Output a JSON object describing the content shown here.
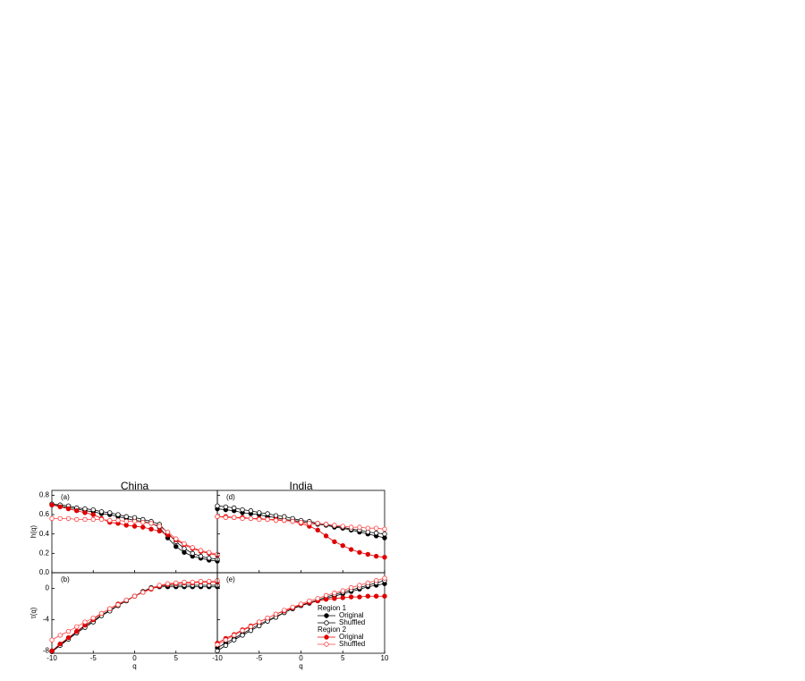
{
  "chart_data": [
    {
      "type": "line",
      "title": "China",
      "annotation": "(a)",
      "y_label": "h(q)",
      "x": [
        -10,
        -9,
        -8,
        -7,
        -6,
        -5,
        -4,
        -3,
        -2,
        -1,
        0,
        1,
        2,
        3,
        4,
        5,
        6,
        7,
        8,
        9,
        10
      ],
      "xlim": [
        -10,
        10
      ],
      "xticks": [
        -10,
        -5,
        0,
        5
      ],
      "xticklabels": false,
      "ylim": [
        0,
        0.85
      ],
      "yticks": [
        {
          "value": 0,
          "label": "0.0"
        },
        0.2,
        0.4,
        0.6,
        0.8
      ],
      "yticklabels": true,
      "series": [
        {
          "name": "Original",
          "region": "Region 1",
          "color": "#000000",
          "marker": "filled",
          "values": [
            0.7,
            0.69,
            0.67,
            0.66,
            0.64,
            0.63,
            0.61,
            0.6,
            0.58,
            0.56,
            0.54,
            0.53,
            0.51,
            0.47,
            0.36,
            0.27,
            0.21,
            0.17,
            0.15,
            0.13,
            0.12
          ]
        },
        {
          "name": "Shuffled",
          "region": "Region 1",
          "color": "#000000",
          "marker": "open",
          "values": [
            0.71,
            0.7,
            0.69,
            0.67,
            0.66,
            0.65,
            0.63,
            0.62,
            0.6,
            0.58,
            0.57,
            0.55,
            0.53,
            0.5,
            0.41,
            0.32,
            0.25,
            0.2,
            0.17,
            0.15,
            0.14
          ]
        },
        {
          "name": "Original",
          "region": "Region 2",
          "color": "#e00000",
          "marker": "filled",
          "values": [
            0.7,
            0.68,
            0.66,
            0.64,
            0.62,
            0.6,
            0.56,
            0.52,
            0.51,
            0.49,
            0.48,
            0.47,
            0.45,
            0.43,
            0.39,
            0.34,
            0.29,
            0.25,
            0.22,
            0.2,
            0.18
          ]
        },
        {
          "name": "Shuffled",
          "region": "Region 2",
          "color": "#ff4040",
          "marker": "open",
          "values": [
            0.56,
            0.56,
            0.56,
            0.55,
            0.55,
            0.55,
            0.55,
            0.54,
            0.54,
            0.53,
            0.53,
            0.52,
            0.51,
            0.48,
            0.42,
            0.35,
            0.3,
            0.26,
            0.23,
            0.21,
            0.19
          ]
        }
      ]
    },
    {
      "type": "line",
      "annotation": "(b)",
      "y_label": "τ(q)",
      "x_label": "q",
      "x": [
        -10,
        -9,
        -8,
        -7,
        -6,
        -5,
        -4,
        -3,
        -2,
        -1,
        0,
        1,
        2,
        3,
        4,
        5,
        6,
        7,
        8,
        9,
        10
      ],
      "xlim": [
        -10,
        10
      ],
      "xticks": [
        -10,
        -5,
        0,
        5
      ],
      "xticklabels": true,
      "ylim": [
        -8.3,
        2
      ],
      "yticks": [
        -8,
        -4,
        0
      ],
      "yticklabels": true,
      "series": [
        {
          "name": "Original",
          "region": "Region 1",
          "color": "#000000",
          "marker": "filled",
          "values": [
            -8.0,
            -7.2,
            -6.4,
            -5.6,
            -4.8,
            -4.2,
            -3.4,
            -2.8,
            -2.2,
            -1.6,
            -1.0,
            -0.5,
            0.0,
            0.2,
            0.2,
            0.2,
            0.2,
            0.2,
            0.2,
            0.2,
            0.2
          ]
        },
        {
          "name": "Shuffled",
          "region": "Region 1",
          "color": "#000000",
          "marker": "open",
          "values": [
            -8.1,
            -7.3,
            -6.5,
            -5.7,
            -5.0,
            -4.3,
            -3.5,
            -2.9,
            -2.2,
            -1.6,
            -1.0,
            -0.4,
            0.1,
            0.3,
            0.4,
            0.4,
            0.4,
            0.4,
            0.4,
            0.4,
            0.4
          ]
        },
        {
          "name": "Original",
          "region": "Region 2",
          "color": "#e00000",
          "marker": "filled",
          "values": [
            -8.0,
            -7.1,
            -6.3,
            -5.5,
            -4.7,
            -4.0,
            -3.2,
            -2.6,
            -2.0,
            -1.5,
            -1.0,
            -0.5,
            -0.1,
            0.3,
            0.5,
            0.6,
            0.7,
            0.7,
            0.8,
            0.8,
            0.8
          ]
        },
        {
          "name": "Shuffled",
          "region": "Region 2",
          "color": "#ff4040",
          "marker": "open",
          "values": [
            -6.6,
            -6.0,
            -5.5,
            -4.9,
            -4.3,
            -3.8,
            -3.2,
            -2.6,
            -2.1,
            -1.5,
            -1.0,
            -0.5,
            0.0,
            0.4,
            0.6,
            0.7,
            0.8,
            0.8,
            0.9,
            0.9,
            1.0
          ]
        }
      ]
    },
    {
      "type": "line",
      "title": "India",
      "annotation": "(d)",
      "x": [
        -10,
        -9,
        -8,
        -7,
        -6,
        -5,
        -4,
        -3,
        -2,
        -1,
        0,
        1,
        2,
        3,
        4,
        5,
        6,
        7,
        8,
        9,
        10
      ],
      "xlim": [
        -10,
        10
      ],
      "xticks": [
        -10,
        -5,
        0,
        5,
        10
      ],
      "xticklabels": false,
      "ylim": [
        0,
        0.85
      ],
      "yticks": [
        0,
        0.2,
        0.4,
        0.6,
        0.8
      ],
      "yticklabels": false,
      "series": [
        {
          "name": "Original",
          "region": "Region 1",
          "color": "#000000",
          "marker": "filled",
          "values": [
            0.66,
            0.65,
            0.64,
            0.62,
            0.61,
            0.6,
            0.58,
            0.57,
            0.55,
            0.54,
            0.53,
            0.51,
            0.5,
            0.49,
            0.47,
            0.46,
            0.44,
            0.42,
            0.4,
            0.38,
            0.36
          ]
        },
        {
          "name": "Shuffled",
          "region": "Region 1",
          "color": "#000000",
          "marker": "open",
          "values": [
            0.69,
            0.68,
            0.67,
            0.65,
            0.64,
            0.62,
            0.61,
            0.59,
            0.58,
            0.56,
            0.54,
            0.53,
            0.51,
            0.5,
            0.48,
            0.47,
            0.45,
            0.44,
            0.42,
            0.41,
            0.4
          ]
        },
        {
          "name": "Original",
          "region": "Region 2",
          "color": "#e00000",
          "marker": "filled",
          "values": [
            0.58,
            0.58,
            0.57,
            0.57,
            0.56,
            0.56,
            0.55,
            0.55,
            0.54,
            0.53,
            0.51,
            0.48,
            0.44,
            0.38,
            0.32,
            0.28,
            0.24,
            0.21,
            0.19,
            0.17,
            0.16
          ]
        },
        {
          "name": "Shuffled",
          "region": "Region 2",
          "color": "#ff4040",
          "marker": "open",
          "values": [
            0.58,
            0.57,
            0.57,
            0.56,
            0.56,
            0.55,
            0.55,
            0.54,
            0.54,
            0.53,
            0.52,
            0.51,
            0.51,
            0.5,
            0.49,
            0.48,
            0.47,
            0.47,
            0.46,
            0.46,
            0.45
          ]
        }
      ]
    },
    {
      "type": "line",
      "annotation": "(e)",
      "x_label": "q",
      "legend": "lower right",
      "x": [
        -10,
        -9,
        -8,
        -7,
        -6,
        -5,
        -4,
        -3,
        -2,
        -1,
        0,
        1,
        2,
        3,
        4,
        5,
        6,
        7,
        8,
        9,
        10
      ],
      "xlim": [
        -10,
        10
      ],
      "xticks": [
        -10,
        -5,
        0,
        5,
        10
      ],
      "xticklabels": true,
      "ylim": [
        -8.3,
        2
      ],
      "yticks": [
        -8,
        -4,
        0
      ],
      "yticklabels": false,
      "series": [
        {
          "name": "Original",
          "region": "Region 1",
          "color": "#000000",
          "marker": "filled",
          "values": [
            -7.6,
            -7.0,
            -6.4,
            -5.8,
            -5.2,
            -4.6,
            -4.1,
            -3.6,
            -3.1,
            -2.6,
            -2.2,
            -1.9,
            -1.6,
            -1.3,
            -1.0,
            -0.7,
            -0.4,
            -0.1,
            0.2,
            0.4,
            0.6
          ]
        },
        {
          "name": "Shuffled",
          "region": "Region 1",
          "color": "#000000",
          "marker": "open",
          "values": [
            -8.0,
            -7.3,
            -6.6,
            -6.0,
            -5.4,
            -4.8,
            -4.2,
            -3.7,
            -3.1,
            -2.6,
            -2.2,
            -1.8,
            -1.5,
            -1.1,
            -0.8,
            -0.5,
            -0.2,
            0.1,
            0.4,
            0.7,
            1.0
          ]
        },
        {
          "name": "Original",
          "region": "Region 2",
          "color": "#e00000",
          "marker": "filled",
          "values": [
            -7.0,
            -6.4,
            -5.9,
            -5.3,
            -4.8,
            -4.3,
            -3.8,
            -3.3,
            -2.9,
            -2.5,
            -2.1,
            -1.8,
            -1.6,
            -1.4,
            -1.3,
            -1.2,
            -1.1,
            -1.1,
            -1.0,
            -1.0,
            -1.0
          ]
        },
        {
          "name": "Shuffled",
          "region": "Region 2",
          "color": "#ff4040",
          "marker": "open",
          "values": [
            -7.2,
            -6.6,
            -6.0,
            -5.4,
            -4.9,
            -4.3,
            -3.8,
            -3.3,
            -2.8,
            -2.4,
            -2.0,
            -1.6,
            -1.3,
            -0.9,
            -0.6,
            -0.3,
            0.1,
            0.4,
            0.7,
            1.0,
            1.3
          ]
        }
      ]
    }
  ]
}
